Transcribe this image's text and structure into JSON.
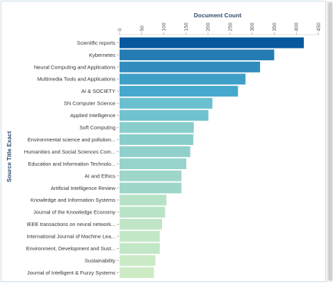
{
  "chart_data": {
    "type": "bar",
    "orientation": "horizontal",
    "title": "",
    "xlabel": "Document Count",
    "ylabel": "Source Title Exact",
    "xlim": [
      0,
      450
    ],
    "x_ticks": [
      "0",
      "50",
      "100",
      "150",
      "200",
      "250",
      "300",
      "350",
      "400",
      "450"
    ],
    "x_axis_position": "top",
    "grid": false,
    "legend": "none",
    "color_scale": {
      "high": "#08589e",
      "mid": "#4eb3d3",
      "low": "#ccebc5"
    },
    "categories": [
      "Scientific reports",
      "Kybernetes",
      "Neural Computing and Applications",
      "Multimedia Tools and Applications",
      "AI & SOCIETY",
      "SN Computer Science",
      "Applied Intelligence",
      "Soft Computing",
      "Environmental science and pollution...",
      "Humanities and Social Sciences Com...",
      "Education and Information Technolo...",
      "AI and Ethics",
      "Artificial Intelligence Review",
      "Knowledge and Information Systems",
      "Journal of the Knowledge Economy",
      "IEEE transactions on neural network...",
      "International Journal of Machine Lea...",
      "Environment, Development and Sust...",
      "Sustainability",
      "Journal of Intelligent & Fuzzy Systems"
    ],
    "values": [
      417,
      350,
      318,
      285,
      268,
      210,
      201,
      168,
      167,
      160,
      151,
      140,
      140,
      106,
      103,
      96,
      91,
      91,
      81,
      78
    ]
  }
}
